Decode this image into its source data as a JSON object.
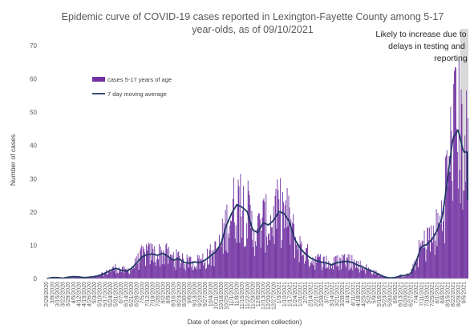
{
  "chart_data": {
    "type": "bar",
    "title_lines": [
      "Epidemic curve of COVID-19 cases reported in Lexington-Fayette County among 5-17",
      "year-olds, as of 09/10/2021"
    ],
    "xlabel": "Date of onset (or specimen collection)",
    "ylabel": "Number of cases",
    "ylim": [
      0,
      70
    ],
    "yticks": [
      0,
      10,
      20,
      30,
      40,
      50,
      60,
      70
    ],
    "x_start": "2020-02-29",
    "x_end": "2021-09-10",
    "xtick_labels": [
      "2/29/2020",
      "3/8/2020",
      "3/15/2020",
      "3/22/2020",
      "3/29/2020",
      "4/5/2020",
      "4/12/2020",
      "4/19/2020",
      "4/26/2020",
      "5/3/2020",
      "5/10/2020",
      "5/17/2020",
      "5/24/2020",
      "5/31/2020",
      "6/7/2020",
      "6/14/2020",
      "6/21/2020",
      "6/28/2020",
      "7/5/2020",
      "7/12/2020",
      "7/19/2020",
      "7/26/2020",
      "8/2/2020",
      "8/9/2020",
      "8/16/2020",
      "8/23/2020",
      "8/30/2020",
      "9/6/2020",
      "9/13/2020",
      "9/20/2020",
      "9/27/2020",
      "10/4/2020",
      "10/11/2020",
      "10/18/2020",
      "10/25/2020",
      "11/1/2020",
      "11/8/2020",
      "11/15/2020",
      "11/22/2020",
      "11/29/2020",
      "12/6/2020",
      "12/13/2020",
      "12/20/2020",
      "12/27/2020",
      "1/3/2021",
      "1/10/2021",
      "1/17/2021",
      "1/24/2021",
      "1/31/2021",
      "2/7/2021",
      "2/14/2021",
      "2/21/2021",
      "2/28/2021",
      "3/7/2021",
      "3/14/2021",
      "3/21/2021",
      "3/28/2021",
      "4/4/2021",
      "4/11/2021",
      "4/18/2021",
      "4/25/2021",
      "5/2/2021",
      "5/9/2021",
      "5/16/2021",
      "5/23/2021",
      "5/30/2021",
      "6/6/2021",
      "6/13/2021",
      "6/20/2021",
      "6/27/2021",
      "7/4/2021",
      "7/11/2021",
      "7/18/2021",
      "7/25/2021",
      "8/1/2021",
      "8/8/2021",
      "8/15/2021",
      "8/22/2021",
      "8/29/2021",
      "9/5/2021"
    ],
    "series": [
      {
        "name": "cases 5-17 years of age",
        "kind": "bar",
        "color": "#7030a0"
      },
      {
        "name": "7 day moving average",
        "kind": "line",
        "color": "#1f3864"
      }
    ],
    "weekly_average": [
      0,
      0.3,
      0.3,
      0.1,
      0.4,
      0.6,
      0.5,
      0.3,
      0.4,
      0.6,
      0.9,
      1.6,
      2.4,
      3.1,
      2.6,
      2.2,
      3.0,
      4.6,
      6.5,
      7.2,
      7.4,
      7.0,
      7.6,
      6.6,
      5.5,
      6.0,
      4.9,
      4.6,
      5.0,
      4.8,
      5.5,
      6.8,
      8.0,
      10.4,
      15.8,
      19.5,
      22.2,
      21.5,
      20.1,
      14.6,
      13.8,
      16.8,
      16.1,
      17.5,
      20.1,
      19.6,
      17.0,
      11.8,
      9.2,
      7.4,
      6.2,
      5.4,
      5.0,
      4.7,
      4.1,
      4.8,
      5.0,
      5.2,
      4.8,
      4.0,
      3.4,
      2.6,
      2.0,
      1.2,
      0.5,
      0.2,
      0.3,
      0.8,
      1.0,
      1.4,
      5.0,
      9.6,
      10.2,
      11.7,
      14.4,
      18.6,
      30.1,
      42.4,
      44.6,
      38.0
    ],
    "shaded_region": {
      "start": "2021-08-31",
      "end": "2021-09-10"
    },
    "annotation_lines": [
      "Likely to increase due to",
      "delays in testing and",
      "reporting"
    ],
    "legend_placement": "upper-left",
    "grid": false
  }
}
